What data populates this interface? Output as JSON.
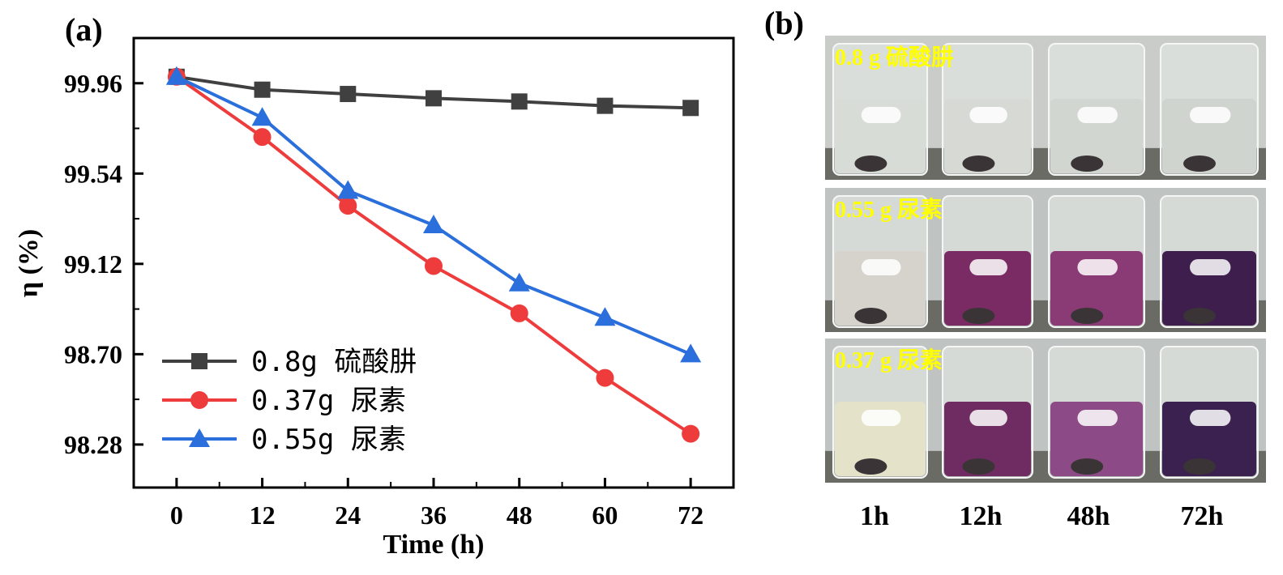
{
  "panel_a_label": "(a)",
  "panel_b_label": "(b)",
  "chart_data": {
    "type": "line",
    "xlabel": "Time (h)",
    "ylabel": "η (%)",
    "x": [
      0,
      12,
      24,
      36,
      48,
      60,
      72
    ],
    "xticks": [
      "0",
      "12",
      "24",
      "36",
      "48",
      "60",
      "72"
    ],
    "yticks": [
      "99.96",
      "99.54",
      "99.12",
      "98.70",
      "98.28"
    ],
    "ytick_values": [
      99.96,
      99.54,
      99.12,
      98.7,
      98.28
    ],
    "xlim": [
      -6,
      78
    ],
    "ylim": [
      98.08,
      100.17
    ],
    "legend_position": "bottom-left",
    "grid": false,
    "series": [
      {
        "name": "0.8g 硫酸肼",
        "color": "#404040",
        "marker": "square",
        "values": [
          99.99,
          99.93,
          99.91,
          99.89,
          99.875,
          99.855,
          99.845
        ]
      },
      {
        "name": "0.37g 尿素",
        "color": "#ee3c3c",
        "marker": "circle",
        "values": [
          99.99,
          99.71,
          99.39,
          99.11,
          98.89,
          98.59,
          98.33
        ]
      },
      {
        "name": "0.55g 尿素",
        "color": "#2a6fdb",
        "marker": "triangle",
        "values": [
          99.99,
          99.8,
          99.46,
          99.3,
          99.03,
          98.87,
          98.7
        ]
      }
    ]
  },
  "photo_panel": {
    "row_labels": [
      "0.8 g 硫酸肼",
      "0.55 g 尿素",
      "0.37 g 尿素"
    ],
    "column_labels": [
      "1h",
      "12h",
      "48h",
      "72h"
    ],
    "liquid_colors": [
      [
        "#d8dcd6",
        "#d6d9d4",
        "#d2d6d1",
        "#d0d4cf"
      ],
      [
        "#d6d3cc",
        "#7a2b63",
        "#8a3a75",
        "#3d1e4c"
      ],
      [
        "#e4e2c8",
        "#6f2c62",
        "#8c4a86",
        "#3b2150"
      ]
    ]
  }
}
